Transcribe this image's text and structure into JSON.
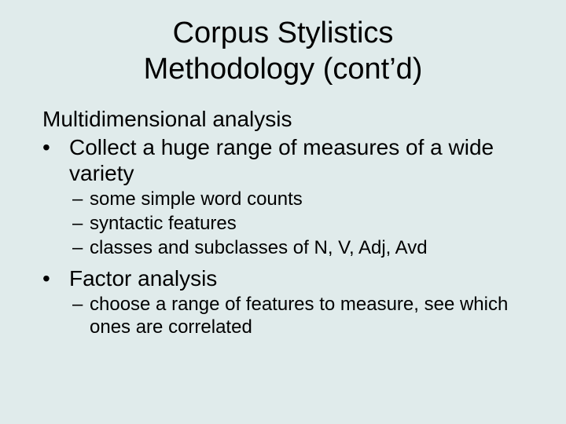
{
  "colors": {
    "background": "#e0ebeb",
    "text": "#000000"
  },
  "typography": {
    "title_fontsize": 38,
    "body_fontsize": 28,
    "sub_fontsize": 24,
    "font_family": "Arial"
  },
  "title": {
    "line1": "Corpus Stylistics",
    "line2": "Methodology (cont’d)"
  },
  "content": {
    "heading": "Multidimensional analysis",
    "bullets": [
      {
        "text": "Collect a huge range of measures of a wide variety",
        "sub": [
          "some simple word counts",
          "syntactic features",
          "classes and subclasses of N, V, Adj, Avd"
        ]
      },
      {
        "text": "Factor analysis",
        "sub": [
          "choose a range of features to measure, see which ones are correlated"
        ]
      }
    ]
  },
  "markers": {
    "bullet": "•",
    "dash": "–"
  }
}
